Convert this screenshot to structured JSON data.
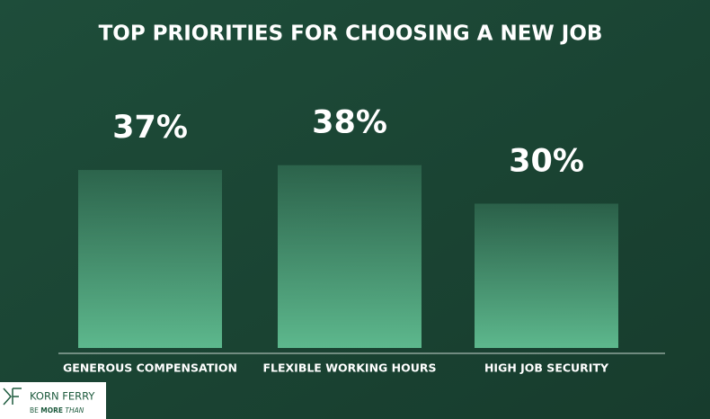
{
  "chart_data": {
    "type": "bar",
    "title": "TOP PRIORITIES FOR CHOOSING A NEW JOB",
    "categories": [
      "GENEROUS COMPENSATION",
      "FLEXIBLE WORKING HOURS",
      "HIGH JOB SECURITY"
    ],
    "values": [
      37,
      38,
      30
    ],
    "value_labels": [
      "37%",
      "38%",
      "30%"
    ],
    "color": "#5db88d"
  },
  "logo": {
    "name": "KORN FERRY",
    "tagline": [
      "BE",
      "MORE",
      "THAN"
    ]
  }
}
